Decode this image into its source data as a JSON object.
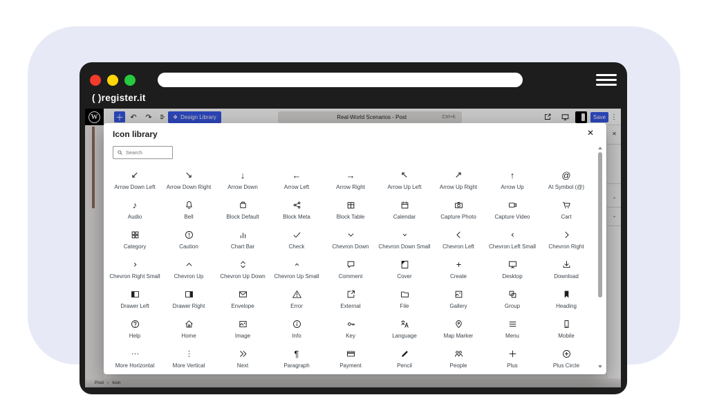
{
  "brand": {
    "logo": "( )register.it"
  },
  "editor_toolbar": {
    "design_library_label": "Design Library",
    "document_title": "Real-World Scenarios - Post",
    "shortcut": "Ctrl+K",
    "save_label": "Save"
  },
  "modal": {
    "title": "Icon library",
    "close_glyph": "✕",
    "search_placeholder": "Search"
  },
  "colors": {
    "accent_blue": "#3858e9",
    "traffic_red": "#f03b2d",
    "traffic_yellow": "#ffd60a",
    "traffic_green": "#27c93f",
    "lavender_bg": "#e7eaf6",
    "frame_dark": "#1d1d1d"
  },
  "breadcrumb": {
    "items": [
      "Post",
      "Icon"
    ],
    "separator": "›"
  },
  "icons": [
    {
      "label": "Arrow Down Left",
      "icon": "arrow-down-left"
    },
    {
      "label": "Arrow Down Right",
      "icon": "arrow-down-right"
    },
    {
      "label": "Arrow Down",
      "icon": "arrow-down"
    },
    {
      "label": "Arrow Left",
      "icon": "arrow-left"
    },
    {
      "label": "Arrow Right",
      "icon": "arrow-right"
    },
    {
      "label": "Arrow Up Left",
      "icon": "arrow-up-left"
    },
    {
      "label": "Arrow Up Right",
      "icon": "arrow-up-right"
    },
    {
      "label": "Arrow Up",
      "icon": "arrow-up"
    },
    {
      "label": "At Symbol (@)",
      "icon": "at-symbol"
    },
    {
      "label": "Audio",
      "icon": "audio"
    },
    {
      "label": "Bell",
      "icon": "bell"
    },
    {
      "label": "Block Default",
      "icon": "block-default"
    },
    {
      "label": "Block Meta",
      "icon": "block-meta"
    },
    {
      "label": "Block Table",
      "icon": "block-table"
    },
    {
      "label": "Calendar",
      "icon": "calendar"
    },
    {
      "label": "Capture Photo",
      "icon": "capture-photo"
    },
    {
      "label": "Capture Video",
      "icon": "capture-video"
    },
    {
      "label": "Cart",
      "icon": "cart"
    },
    {
      "label": "Category",
      "icon": "category"
    },
    {
      "label": "Caution",
      "icon": "caution"
    },
    {
      "label": "Chart Bar",
      "icon": "chart-bar"
    },
    {
      "label": "Check",
      "icon": "check"
    },
    {
      "label": "Chevron Down",
      "icon": "chevron-down"
    },
    {
      "label": "Chevron Down Small",
      "icon": "chevron-down-small"
    },
    {
      "label": "Chevron Left",
      "icon": "chevron-left"
    },
    {
      "label": "Chevron Left Small",
      "icon": "chevron-left-small"
    },
    {
      "label": "Chevron Right",
      "icon": "chevron-right"
    },
    {
      "label": "Chevron Right Small",
      "icon": "chevron-right-small"
    },
    {
      "label": "Chevron Up",
      "icon": "chevron-up"
    },
    {
      "label": "Chevron Up Down",
      "icon": "chevron-up-down"
    },
    {
      "label": "Chevron Up Small",
      "icon": "chevron-up-small"
    },
    {
      "label": "Comment",
      "icon": "comment"
    },
    {
      "label": "Cover",
      "icon": "cover"
    },
    {
      "label": "Create",
      "icon": "create"
    },
    {
      "label": "Desktop",
      "icon": "desktop"
    },
    {
      "label": "Download",
      "icon": "download"
    },
    {
      "label": "Drawer Left",
      "icon": "drawer-left"
    },
    {
      "label": "Drawer Right",
      "icon": "drawer-right"
    },
    {
      "label": "Envelope",
      "icon": "envelope"
    },
    {
      "label": "Error",
      "icon": "error"
    },
    {
      "label": "External",
      "icon": "external"
    },
    {
      "label": "File",
      "icon": "file"
    },
    {
      "label": "Gallery",
      "icon": "gallery"
    },
    {
      "label": "Group",
      "icon": "group"
    },
    {
      "label": "Heading",
      "icon": "heading"
    },
    {
      "label": "Help",
      "icon": "help"
    },
    {
      "label": "Home",
      "icon": "home"
    },
    {
      "label": "Image",
      "icon": "image"
    },
    {
      "label": "Info",
      "icon": "info"
    },
    {
      "label": "Key",
      "icon": "key"
    },
    {
      "label": "Language",
      "icon": "language"
    },
    {
      "label": "Map Marker",
      "icon": "map-marker"
    },
    {
      "label": "Menu",
      "icon": "menu"
    },
    {
      "label": "Mobile",
      "icon": "mobile"
    },
    {
      "label": "More Horizontal",
      "icon": "more-horizontal"
    },
    {
      "label": "More Vertical",
      "icon": "more-vertical"
    },
    {
      "label": "Next",
      "icon": "next"
    },
    {
      "label": "Paragraph",
      "icon": "paragraph"
    },
    {
      "label": "Payment",
      "icon": "payment"
    },
    {
      "label": "Pencil",
      "icon": "pencil"
    },
    {
      "label": "People",
      "icon": "people"
    },
    {
      "label": "Plus",
      "icon": "plus"
    },
    {
      "label": "Plus Circle",
      "icon": "plus-circle"
    }
  ]
}
